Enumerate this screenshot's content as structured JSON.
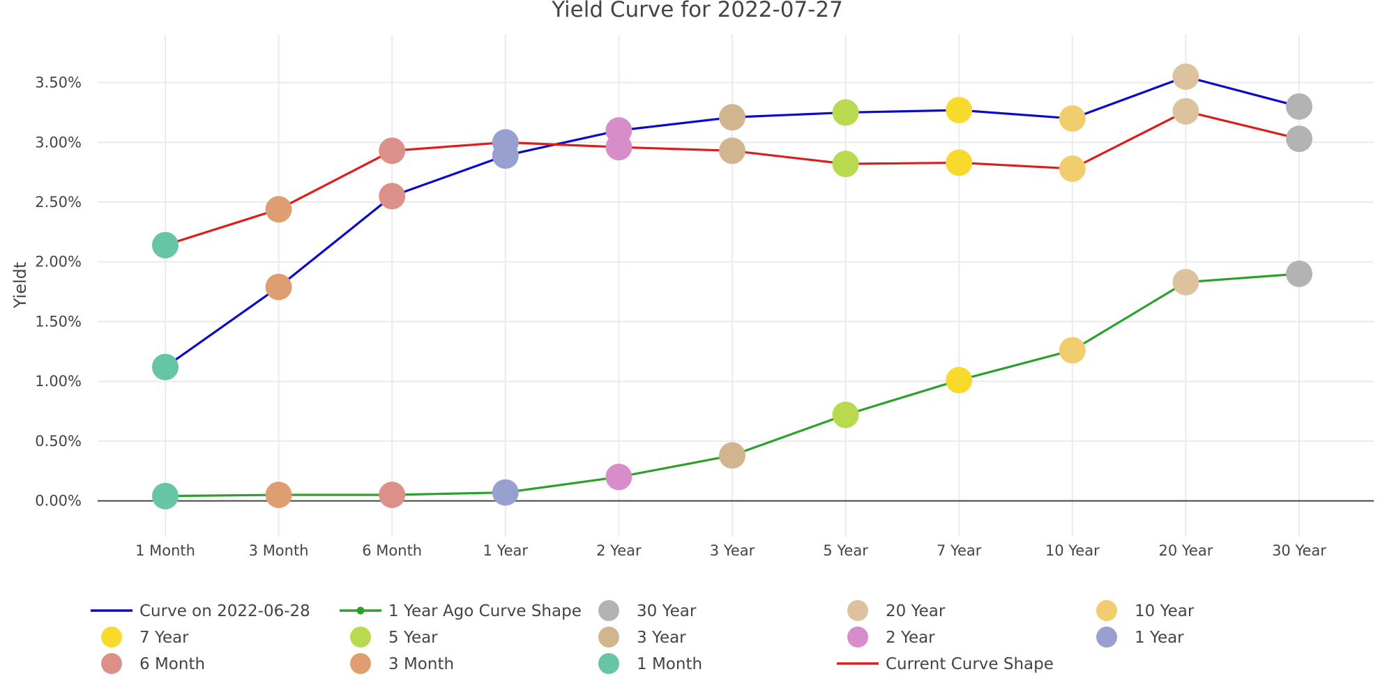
{
  "chart_data": {
    "type": "line",
    "title": "Yield Curve for 2022-07-27",
    "xlabel": "",
    "ylabel": "Yieldt",
    "categories": [
      "1 Month",
      "3 Month",
      "6 Month",
      "1 Year",
      "2 Year",
      "3 Year",
      "5 Year",
      "7 Year",
      "10 Year",
      "20 Year",
      "30 Year"
    ],
    "ylim": [
      -0.3,
      3.9
    ],
    "yticks": [
      0.0,
      0.5,
      1.0,
      1.5,
      2.0,
      2.5,
      3.0,
      3.5
    ],
    "ytick_labels": [
      "0.00%",
      "0.50%",
      "1.00%",
      "1.50%",
      "2.00%",
      "2.50%",
      "3.00%",
      "3.50%"
    ],
    "series": [
      {
        "name": "Curve on 2022-06-28",
        "color": "#0a0ac8",
        "values": [
          1.12,
          1.79,
          2.55,
          2.89,
          3.1,
          3.21,
          3.25,
          3.27,
          3.2,
          3.55,
          3.3
        ]
      },
      {
        "name": "1 Year Ago Curve Shape",
        "color": "#2ca02c",
        "values": [
          0.04,
          0.05,
          0.05,
          0.07,
          0.2,
          0.38,
          0.72,
          1.01,
          1.26,
          1.83,
          1.9
        ]
      },
      {
        "name": "Current Curve Shape",
        "color": "#dd1c1c",
        "values": [
          2.14,
          2.44,
          2.93,
          3.0,
          2.96,
          2.93,
          2.82,
          2.83,
          2.78,
          3.26,
          3.03
        ]
      }
    ],
    "marker_colors": {
      "1 Month": "#66c5a5",
      "3 Month": "#df9e72",
      "6 Month": "#db9189",
      "1 Year": "#98a0d0",
      "2 Year": "#d88dcb",
      "3 Year": "#d1b58f",
      "5 Year": "#b9da4f",
      "7 Year": "#f8da2c",
      "10 Year": "#f2cd6e",
      "20 Year": "#dcc29e",
      "30 Year": "#b3b3b3"
    },
    "legend": {
      "placement": "bottom",
      "entries": [
        {
          "label": "Curve on 2022-06-28",
          "kind": "line",
          "color": "#0a0ac8"
        },
        {
          "label": "1 Year Ago Curve Shape",
          "kind": "line-marker",
          "color": "#2ca02c"
        },
        {
          "label": "30 Year",
          "kind": "marker",
          "color": "#b3b3b3"
        },
        {
          "label": "20 Year",
          "kind": "marker",
          "color": "#dcc29e"
        },
        {
          "label": "10 Year",
          "kind": "marker",
          "color": "#f2cd6e"
        },
        {
          "label": "7 Year",
          "kind": "marker",
          "color": "#f8da2c"
        },
        {
          "label": "5 Year",
          "kind": "marker",
          "color": "#b9da4f"
        },
        {
          "label": "3 Year",
          "kind": "marker",
          "color": "#d1b58f"
        },
        {
          "label": "2 Year",
          "kind": "marker",
          "color": "#d88dcb"
        },
        {
          "label": "1 Year",
          "kind": "marker",
          "color": "#98a0d0"
        },
        {
          "label": "6 Month",
          "kind": "marker",
          "color": "#db9189"
        },
        {
          "label": "3 Month",
          "kind": "marker",
          "color": "#df9e72"
        },
        {
          "label": "1 Month",
          "kind": "marker",
          "color": "#66c5a5"
        },
        {
          "label": "Current Curve Shape",
          "kind": "line",
          "color": "#dd1c1c"
        }
      ]
    },
    "grid": true
  }
}
